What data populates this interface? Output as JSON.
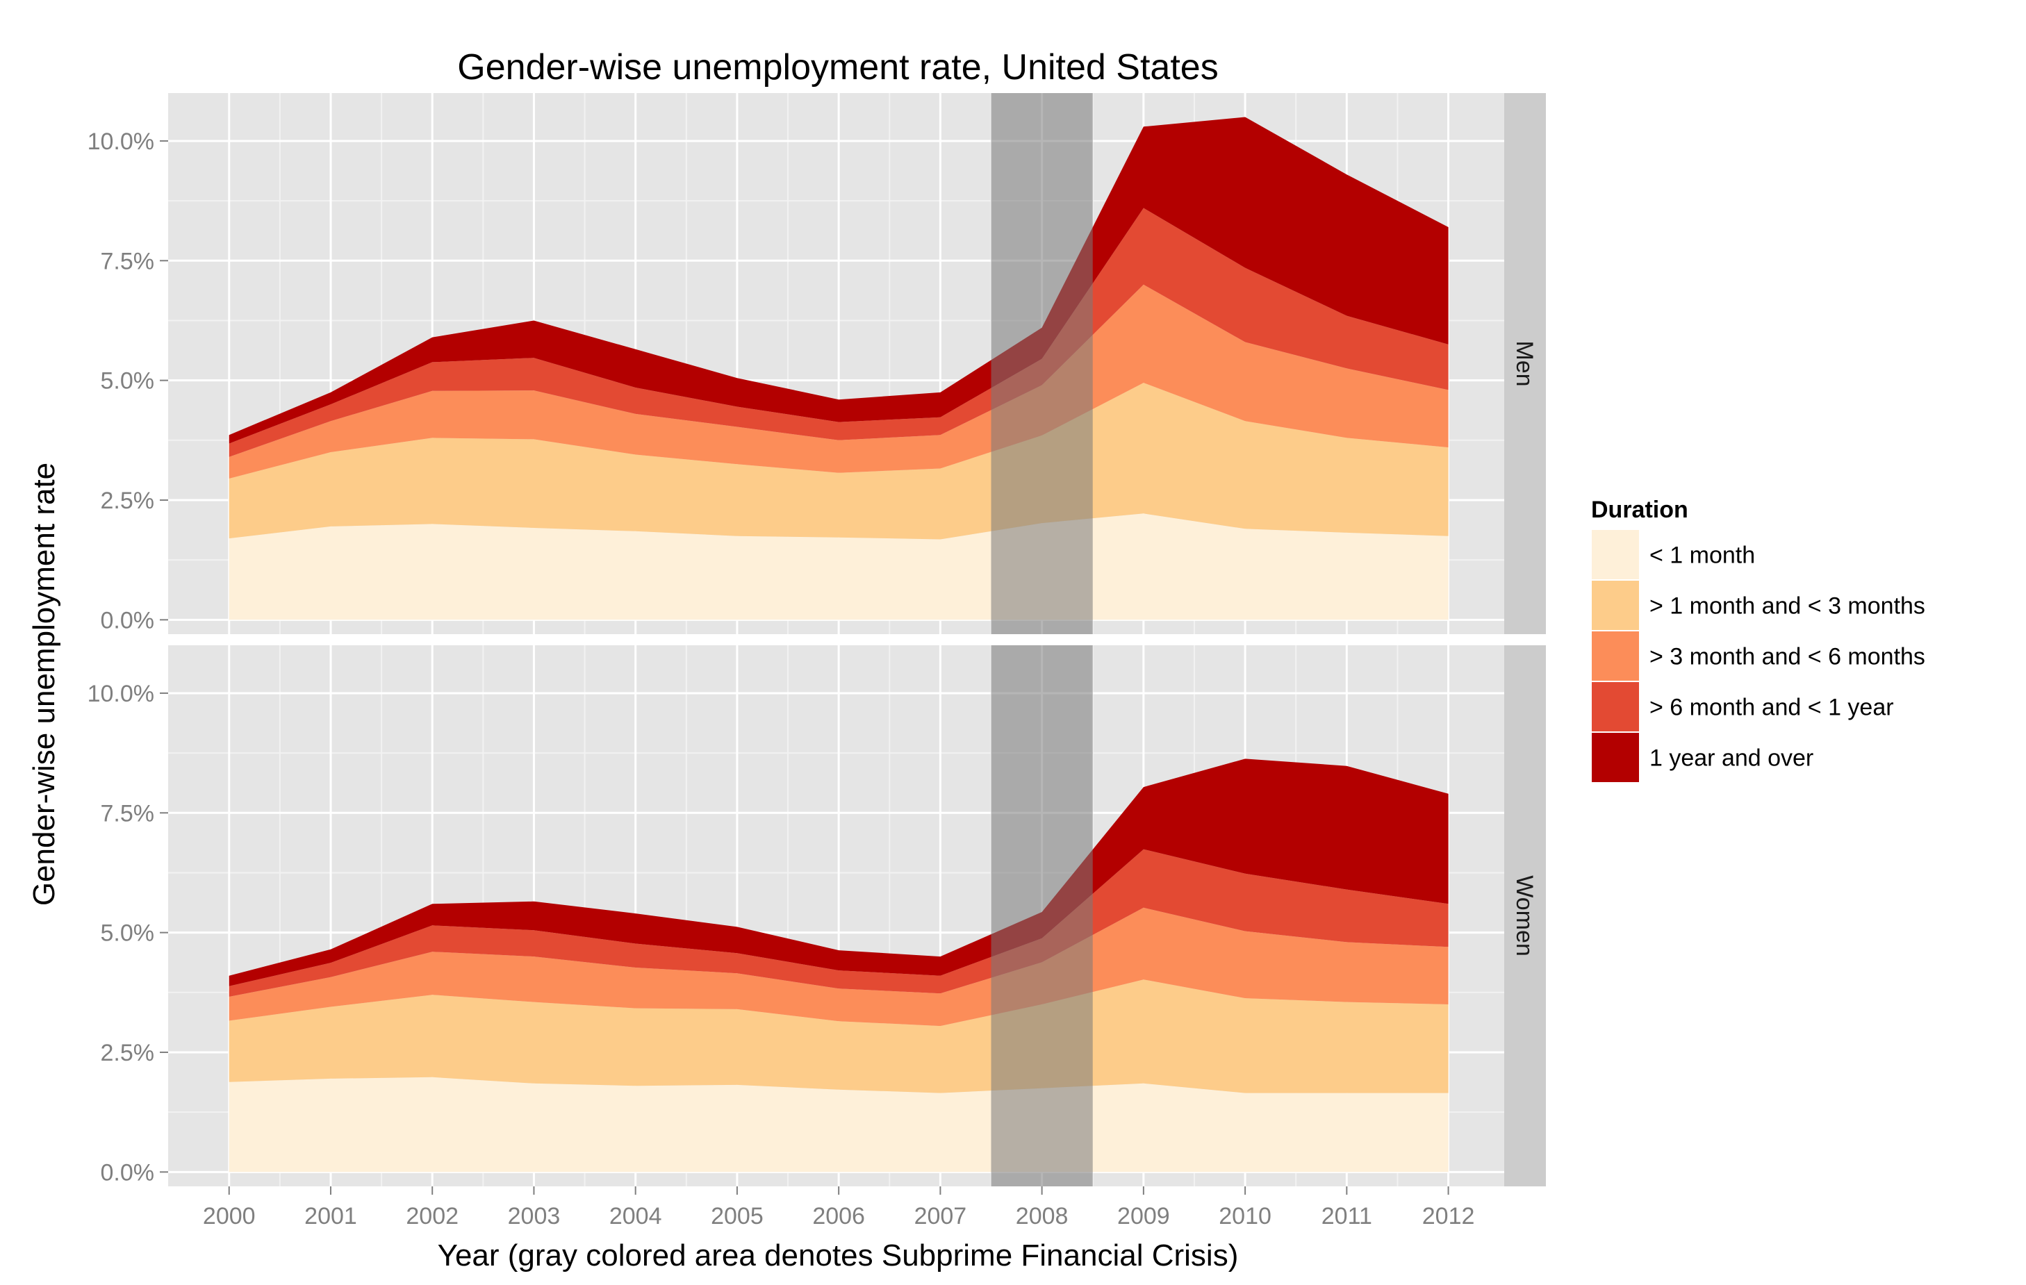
{
  "chart_data": {
    "type": "area",
    "stacked": true,
    "title": "Gender-wise unemployment rate, United States",
    "xlabel": "Year (gray colored area denotes Subprime Financial Crisis)",
    "ylabel": "Gender-wise unemployment rate",
    "x": [
      2000,
      2001,
      2002,
      2003,
      2004,
      2005,
      2006,
      2007,
      2008,
      2009,
      2010,
      2011,
      2012
    ],
    "x_ticks": [
      "2000",
      "2001",
      "2002",
      "2003",
      "2004",
      "2005",
      "2006",
      "2007",
      "2008",
      "2009",
      "2010",
      "2011",
      "2012"
    ],
    "xlim": [
      1999.4,
      2012.55
    ],
    "ylim": [
      -0.3,
      11.0
    ],
    "y_ticks": [
      {
        "value": 0,
        "label": "0.0%"
      },
      {
        "value": 2.5,
        "label": "2.5%"
      },
      {
        "value": 5,
        "label": "5.0%"
      },
      {
        "value": 7.5,
        "label": "7.5%"
      },
      {
        "value": 10,
        "label": "10.0%"
      }
    ],
    "grid": true,
    "legend": {
      "title": "Duration",
      "position": "right"
    },
    "crisis_shading": {
      "from": 2007.5,
      "to": 2008.5,
      "color": "#7a7a7a",
      "opacity": 0.55
    },
    "series_colors": [
      "#fef0d9",
      "#fdcc8a",
      "#fc8d59",
      "#e34a33",
      "#b30000"
    ],
    "series_names": [
      "< 1 month",
      "> 1 month and < 3 months",
      "> 3 month and < 6 months",
      "> 6 month and < 1 year",
      "1 year and over"
    ],
    "panels": [
      {
        "strip_label": "Men",
        "series": [
          {
            "name": "< 1 month",
            "values": [
              1.7,
              1.95,
              2.0,
              1.92,
              1.85,
              1.75,
              1.72,
              1.68,
              2.02,
              2.22,
              1.9,
              1.82,
              1.75
            ]
          },
          {
            "name": "> 1 month and < 3 months",
            "values": [
              1.25,
              1.55,
              1.8,
              1.85,
              1.6,
              1.5,
              1.35,
              1.48,
              1.83,
              2.73,
              2.25,
              1.98,
              1.85
            ]
          },
          {
            "name": "> 3 month and < 6 months",
            "values": [
              0.45,
              0.65,
              0.98,
              1.02,
              0.85,
              0.78,
              0.68,
              0.7,
              1.05,
              2.05,
              1.65,
              1.45,
              1.2
            ]
          },
          {
            "name": "> 6 month and < 1 year",
            "values": [
              0.28,
              0.35,
              0.6,
              0.68,
              0.55,
              0.42,
              0.38,
              0.37,
              0.55,
              1.6,
              1.55,
              1.1,
              0.95
            ]
          },
          {
            "name": "1 year and over",
            "values": [
              0.18,
              0.25,
              0.52,
              0.78,
              0.8,
              0.6,
              0.47,
              0.52,
              0.65,
              1.7,
              3.15,
              2.95,
              2.45
            ]
          }
        ]
      },
      {
        "strip_label": "Women",
        "series": [
          {
            "name": "< 1 month",
            "values": [
              1.88,
              1.95,
              1.98,
              1.85,
              1.8,
              1.82,
              1.72,
              1.65,
              1.75,
              1.85,
              1.65,
              1.65,
              1.65
            ]
          },
          {
            "name": "> 1 month and < 3 months",
            "values": [
              1.28,
              1.5,
              1.72,
              1.7,
              1.62,
              1.58,
              1.43,
              1.4,
              1.75,
              2.17,
              1.98,
              1.9,
              1.85
            ]
          },
          {
            "name": "> 3 month and < 6 months",
            "values": [
              0.5,
              0.62,
              0.9,
              0.95,
              0.85,
              0.75,
              0.68,
              0.68,
              0.88,
              1.5,
              1.4,
              1.25,
              1.2
            ]
          },
          {
            "name": "> 6 month and < 1 year",
            "values": [
              0.22,
              0.3,
              0.55,
              0.55,
              0.5,
              0.42,
              0.38,
              0.37,
              0.5,
              1.22,
              1.2,
              1.1,
              0.9
            ]
          },
          {
            "name": "1 year and over",
            "values": [
              0.22,
              0.28,
              0.45,
              0.6,
              0.63,
              0.55,
              0.42,
              0.4,
              0.55,
              1.3,
              2.4,
              2.58,
              2.3
            ]
          }
        ]
      }
    ]
  }
}
